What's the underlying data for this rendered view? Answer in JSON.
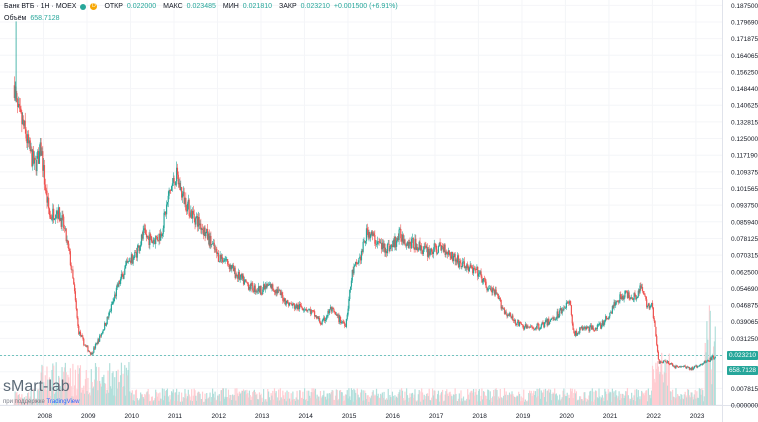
{
  "header": {
    "title": "Банк ВТБ · 1Н · MOEX",
    "badge": "D",
    "open_label": "ОТКР",
    "open_value": "0.022000",
    "high_label": "МАКС",
    "high_value": "0.023485",
    "low_label": "МИН",
    "low_value": "0.021810",
    "close_label": "ЗАКР",
    "close_value": "0.023210",
    "change": "+0.001500 (+6.91%)"
  },
  "volume_label": "Объём",
  "volume_value": "658.7128",
  "watermark": {
    "brand": "sMart-lab",
    "sub_prefix": "при поддержке",
    "sub_brand": "TradingView"
  },
  "price_tag": "0.023210",
  "volume_tag": "658.7128",
  "colors": {
    "up": "#26a69a",
    "down": "#ef5350",
    "up_vol": "#b2dfdb",
    "down_vol": "#ffcdd2"
  },
  "chart_data": {
    "type": "candlestick",
    "x_range": [
      2007.0,
      2023.6
    ],
    "y_range": [
      0,
      0.19
    ],
    "x_tick_labels": [
      "2008",
      "2009",
      "2010",
      "2011",
      "2012",
      "2013",
      "2014",
      "2015",
      "2016",
      "2017",
      "2018",
      "2019",
      "2020",
      "2021",
      "2022",
      "2023"
    ],
    "y_tick_labels": [
      "0.187500",
      "0.179690",
      "0.171875",
      "0.164065",
      "0.156250",
      "0.148440",
      "0.140625",
      "0.132815",
      "0.125000",
      "0.117190",
      "0.109375",
      "0.101565",
      "0.093750",
      "0.085940",
      "0.078125",
      "0.070315",
      "0.062500",
      "0.054690",
      "0.046875",
      "0.039065",
      "0.031250",
      "0.023210",
      "0.015625",
      "0.007815",
      "0.000000"
    ],
    "price_path": [
      [
        2007.33,
        0.15
      ],
      [
        2007.4,
        0.138
      ],
      [
        2007.55,
        0.13
      ],
      [
        2007.7,
        0.118
      ],
      [
        2007.8,
        0.112
      ],
      [
        2007.95,
        0.12
      ],
      [
        2008.05,
        0.1
      ],
      [
        2008.15,
        0.088
      ],
      [
        2008.3,
        0.092
      ],
      [
        2008.45,
        0.085
      ],
      [
        2008.6,
        0.07
      ],
      [
        2008.7,
        0.055
      ],
      [
        2008.8,
        0.035
      ],
      [
        2008.95,
        0.028
      ],
      [
        2009.1,
        0.024
      ],
      [
        2009.3,
        0.032
      ],
      [
        2009.5,
        0.042
      ],
      [
        2009.7,
        0.055
      ],
      [
        2009.9,
        0.065
      ],
      [
        2010.1,
        0.07
      ],
      [
        2010.3,
        0.08
      ],
      [
        2010.5,
        0.077
      ],
      [
        2010.7,
        0.08
      ],
      [
        2010.9,
        0.1
      ],
      [
        2011.05,
        0.108
      ],
      [
        2011.2,
        0.098
      ],
      [
        2011.4,
        0.09
      ],
      [
        2011.6,
        0.085
      ],
      [
        2011.8,
        0.078
      ],
      [
        2012.0,
        0.07
      ],
      [
        2012.2,
        0.068
      ],
      [
        2012.4,
        0.062
      ],
      [
        2012.6,
        0.058
      ],
      [
        2012.8,
        0.055
      ],
      [
        2013.0,
        0.054
      ],
      [
        2013.2,
        0.056
      ],
      [
        2013.4,
        0.053
      ],
      [
        2013.6,
        0.048
      ],
      [
        2013.8,
        0.046
      ],
      [
        2014.0,
        0.046
      ],
      [
        2014.2,
        0.043
      ],
      [
        2014.4,
        0.038
      ],
      [
        2014.6,
        0.045
      ],
      [
        2014.8,
        0.04
      ],
      [
        2014.95,
        0.038
      ],
      [
        2015.1,
        0.062
      ],
      [
        2015.3,
        0.07
      ],
      [
        2015.45,
        0.082
      ],
      [
        2015.6,
        0.078
      ],
      [
        2015.8,
        0.074
      ],
      [
        2016.0,
        0.074
      ],
      [
        2016.2,
        0.08
      ],
      [
        2016.4,
        0.076
      ],
      [
        2016.6,
        0.075
      ],
      [
        2016.8,
        0.072
      ],
      [
        2017.0,
        0.073
      ],
      [
        2017.2,
        0.074
      ],
      [
        2017.4,
        0.07
      ],
      [
        2017.6,
        0.066
      ],
      [
        2017.8,
        0.064
      ],
      [
        2018.0,
        0.062
      ],
      [
        2018.2,
        0.055
      ],
      [
        2018.4,
        0.052
      ],
      [
        2018.6,
        0.044
      ],
      [
        2018.8,
        0.04
      ],
      [
        2019.0,
        0.037
      ],
      [
        2019.2,
        0.036
      ],
      [
        2019.4,
        0.037
      ],
      [
        2019.6,
        0.039
      ],
      [
        2019.8,
        0.042
      ],
      [
        2020.0,
        0.047
      ],
      [
        2020.1,
        0.048
      ],
      [
        2020.2,
        0.033
      ],
      [
        2020.4,
        0.036
      ],
      [
        2020.6,
        0.036
      ],
      [
        2020.8,
        0.037
      ],
      [
        2021.0,
        0.042
      ],
      [
        2021.2,
        0.05
      ],
      [
        2021.4,
        0.052
      ],
      [
        2021.6,
        0.051
      ],
      [
        2021.75,
        0.055
      ],
      [
        2021.85,
        0.048
      ],
      [
        2022.0,
        0.046
      ],
      [
        2022.15,
        0.02
      ],
      [
        2022.3,
        0.021
      ],
      [
        2022.5,
        0.018
      ],
      [
        2022.7,
        0.018
      ],
      [
        2022.9,
        0.017
      ],
      [
        2023.1,
        0.019
      ],
      [
        2023.3,
        0.021
      ],
      [
        2023.45,
        0.02321
      ]
    ]
  }
}
